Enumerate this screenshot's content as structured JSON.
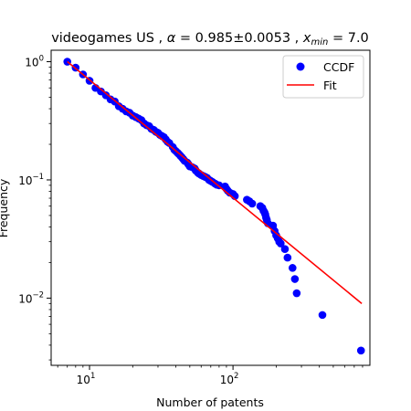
{
  "chart_data": {
    "type": "scatter",
    "title": "videogames US , α = 0.985±0.0053 , x_min = 7.0",
    "title_parts": {
      "dataset": "videogames US , ",
      "alpha_symbol": "α",
      "alpha_eq": " = 0.985±0.0053 , ",
      "xmin_symbol": "x",
      "xmin_sub": "min",
      "xmin_eq": " = 7.0"
    },
    "xlabel": "Number of patents",
    "ylabel": "Frequency",
    "xscale": "log",
    "yscale": "log",
    "xlim": [
      5.4,
      900
    ],
    "ylim": [
      0.0027,
      1.25
    ],
    "xticks": [
      {
        "value": 10,
        "base": "10",
        "exp": "1"
      },
      {
        "value": 100,
        "base": "10",
        "exp": "2"
      }
    ],
    "yticks": [
      {
        "value": 0.01,
        "base": "10",
        "exp": "−2"
      },
      {
        "value": 0.1,
        "base": "10",
        "exp": "−1"
      },
      {
        "value": 1,
        "base": "10",
        "exp": "0"
      }
    ],
    "legend": {
      "position": "top-right",
      "entries": [
        {
          "label": "CCDF",
          "kind": "marker",
          "color": "#0000ff"
        },
        {
          "label": "Fit",
          "kind": "line",
          "color": "#ff0000"
        }
      ]
    },
    "series": [
      {
        "name": "CCDF",
        "color": "#0000ff",
        "points": [
          [
            7,
            1.0
          ],
          [
            8,
            0.89
          ],
          [
            9,
            0.78
          ],
          [
            10,
            0.69
          ],
          [
            11,
            0.6
          ],
          [
            12,
            0.56
          ],
          [
            13,
            0.52
          ],
          [
            14,
            0.48
          ],
          [
            15,
            0.46
          ],
          [
            16,
            0.42
          ],
          [
            17,
            0.4
          ],
          [
            18,
            0.38
          ],
          [
            19,
            0.37
          ],
          [
            20,
            0.35
          ],
          [
            21,
            0.34
          ],
          [
            22,
            0.33
          ],
          [
            23,
            0.32
          ],
          [
            24,
            0.3
          ],
          [
            25,
            0.29
          ],
          [
            26,
            0.285
          ],
          [
            27,
            0.27
          ],
          [
            28,
            0.265
          ],
          [
            29,
            0.255
          ],
          [
            30,
            0.25
          ],
          [
            31,
            0.24
          ],
          [
            32,
            0.235
          ],
          [
            33,
            0.23
          ],
          [
            34,
            0.22
          ],
          [
            35,
            0.21
          ],
          [
            36,
            0.205
          ],
          [
            38,
            0.19
          ],
          [
            39,
            0.18
          ],
          [
            40,
            0.175
          ],
          [
            41,
            0.17
          ],
          [
            42,
            0.165
          ],
          [
            43,
            0.16
          ],
          [
            44,
            0.155
          ],
          [
            45,
            0.15
          ],
          [
            46,
            0.145
          ],
          [
            48,
            0.14
          ],
          [
            49,
            0.135
          ],
          [
            50,
            0.13
          ],
          [
            52,
            0.128
          ],
          [
            54,
            0.125
          ],
          [
            55,
            0.12
          ],
          [
            57,
            0.115
          ],
          [
            58,
            0.113
          ],
          [
            60,
            0.11
          ],
          [
            62,
            0.108
          ],
          [
            64,
            0.106
          ],
          [
            66,
            0.104
          ],
          [
            68,
            0.1
          ],
          [
            70,
            0.098
          ],
          [
            72,
            0.096
          ],
          [
            75,
            0.093
          ],
          [
            77,
            0.091
          ],
          [
            80,
            0.09
          ],
          [
            88,
            0.088
          ],
          [
            90,
            0.084
          ],
          [
            92,
            0.081
          ],
          [
            95,
            0.078
          ],
          [
            100,
            0.076
          ],
          [
            103,
            0.073
          ],
          [
            125,
            0.068
          ],
          [
            130,
            0.066
          ],
          [
            136,
            0.063
          ],
          [
            155,
            0.06
          ],
          [
            160,
            0.058
          ],
          [
            163,
            0.055
          ],
          [
            166,
            0.053
          ],
          [
            168,
            0.051
          ],
          [
            170,
            0.048
          ],
          [
            172,
            0.046
          ],
          [
            175,
            0.043
          ],
          [
            190,
            0.041
          ],
          [
            195,
            0.037
          ],
          [
            200,
            0.034
          ],
          [
            205,
            0.032
          ],
          [
            210,
            0.03
          ],
          [
            215,
            0.029
          ],
          [
            230,
            0.026
          ],
          [
            240,
            0.022
          ],
          [
            260,
            0.018
          ],
          [
            270,
            0.0145
          ],
          [
            278,
            0.011
          ],
          [
            420,
            0.0072
          ],
          [
            780,
            0.0036
          ]
        ]
      },
      {
        "name": "Fit",
        "color": "#ff0000",
        "type": "line",
        "points": [
          [
            7,
            1.0
          ],
          [
            790,
            0.009
          ]
        ]
      }
    ]
  }
}
